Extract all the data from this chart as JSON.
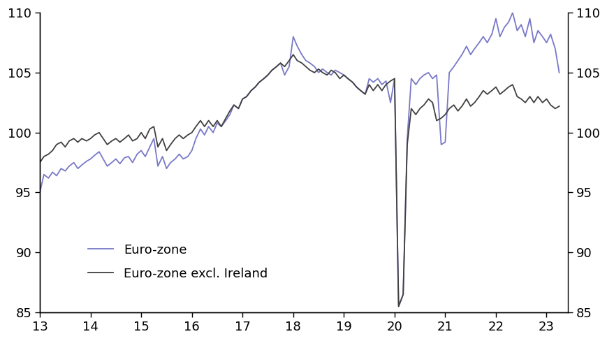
{
  "xlim": [
    13,
    23.42
  ],
  "ylim": [
    85,
    110
  ],
  "xticks": [
    13,
    14,
    15,
    16,
    17,
    18,
    19,
    20,
    21,
    22,
    23
  ],
  "yticks": [
    85,
    90,
    95,
    100,
    105,
    110
  ],
  "legend": [
    {
      "label": "Euro-zone",
      "color": "#7878c8"
    },
    {
      "label": "Euro-zone excl. Ireland",
      "color": "#333333"
    }
  ],
  "eurozone_x": [
    13.0,
    13.08,
    13.17,
    13.25,
    13.33,
    13.42,
    13.5,
    13.58,
    13.67,
    13.75,
    13.83,
    13.92,
    14.0,
    14.08,
    14.17,
    14.25,
    14.33,
    14.42,
    14.5,
    14.58,
    14.67,
    14.75,
    14.83,
    14.92,
    15.0,
    15.08,
    15.17,
    15.25,
    15.33,
    15.42,
    15.5,
    15.58,
    15.67,
    15.75,
    15.83,
    15.92,
    16.0,
    16.08,
    16.17,
    16.25,
    16.33,
    16.42,
    16.5,
    16.58,
    16.67,
    16.75,
    16.83,
    16.92,
    17.0,
    17.08,
    17.17,
    17.25,
    17.33,
    17.42,
    17.5,
    17.58,
    17.67,
    17.75,
    17.83,
    17.92,
    18.0,
    18.08,
    18.17,
    18.25,
    18.33,
    18.42,
    18.5,
    18.58,
    18.67,
    18.75,
    18.83,
    18.92,
    19.0,
    19.08,
    19.17,
    19.25,
    19.33,
    19.42,
    19.5,
    19.58,
    19.67,
    19.75,
    19.83,
    19.92,
    20.0,
    20.08,
    20.17,
    20.25,
    20.33,
    20.42,
    20.5,
    20.58,
    20.67,
    20.75,
    20.83,
    20.92,
    21.0,
    21.08,
    21.17,
    21.25,
    21.33,
    21.42,
    21.5,
    21.58,
    21.67,
    21.75,
    21.83,
    21.92,
    22.0,
    22.08,
    22.17,
    22.25,
    22.33,
    22.42,
    22.5,
    22.58,
    22.67,
    22.75,
    22.83,
    22.92,
    23.0,
    23.08,
    23.17,
    23.25
  ],
  "eurozone_y": [
    95.0,
    96.5,
    96.2,
    96.7,
    96.4,
    97.0,
    96.8,
    97.2,
    97.5,
    97.0,
    97.3,
    97.6,
    97.8,
    98.1,
    98.4,
    97.8,
    97.2,
    97.5,
    97.8,
    97.4,
    97.9,
    98.0,
    97.5,
    98.2,
    98.5,
    98.0,
    98.8,
    99.5,
    97.2,
    98.0,
    97.0,
    97.5,
    97.8,
    98.2,
    97.8,
    98.0,
    98.5,
    99.5,
    100.3,
    99.8,
    100.5,
    100.0,
    100.8,
    100.5,
    101.0,
    101.5,
    102.3,
    102.0,
    102.8,
    103.0,
    103.5,
    103.8,
    104.2,
    104.5,
    104.8,
    105.2,
    105.5,
    105.8,
    104.8,
    105.5,
    108.0,
    107.2,
    106.5,
    106.0,
    105.8,
    105.5,
    105.0,
    105.3,
    105.0,
    104.8,
    105.2,
    105.0,
    104.8,
    104.5,
    104.2,
    103.8,
    103.5,
    103.2,
    104.5,
    104.2,
    104.5,
    104.0,
    104.3,
    102.5,
    104.5,
    85.5,
    86.5,
    99.5,
    104.5,
    104.0,
    104.5,
    104.8,
    105.0,
    104.5,
    104.8,
    99.0,
    99.2,
    105.0,
    105.5,
    106.0,
    106.5,
    107.2,
    106.5,
    107.0,
    107.5,
    108.0,
    107.5,
    108.2,
    109.5,
    108.0,
    108.8,
    109.2,
    110.0,
    108.5,
    109.0,
    108.0,
    109.5,
    107.5,
    108.5,
    108.0,
    107.5,
    108.2,
    107.0,
    105.0
  ],
  "excl_ireland_x": [
    13.0,
    13.08,
    13.17,
    13.25,
    13.33,
    13.42,
    13.5,
    13.58,
    13.67,
    13.75,
    13.83,
    13.92,
    14.0,
    14.08,
    14.17,
    14.25,
    14.33,
    14.42,
    14.5,
    14.58,
    14.67,
    14.75,
    14.83,
    14.92,
    15.0,
    15.08,
    15.17,
    15.25,
    15.33,
    15.42,
    15.5,
    15.58,
    15.67,
    15.75,
    15.83,
    15.92,
    16.0,
    16.08,
    16.17,
    16.25,
    16.33,
    16.42,
    16.5,
    16.58,
    16.67,
    16.75,
    16.83,
    16.92,
    17.0,
    17.08,
    17.17,
    17.25,
    17.33,
    17.42,
    17.5,
    17.58,
    17.67,
    17.75,
    17.83,
    17.92,
    18.0,
    18.08,
    18.17,
    18.25,
    18.33,
    18.42,
    18.5,
    18.58,
    18.67,
    18.75,
    18.83,
    18.92,
    19.0,
    19.08,
    19.17,
    19.25,
    19.33,
    19.42,
    19.5,
    19.58,
    19.67,
    19.75,
    19.83,
    19.92,
    20.0,
    20.08,
    20.17,
    20.25,
    20.33,
    20.42,
    20.5,
    20.58,
    20.67,
    20.75,
    20.83,
    20.92,
    21.0,
    21.08,
    21.17,
    21.25,
    21.33,
    21.42,
    21.5,
    21.58,
    21.67,
    21.75,
    21.83,
    21.92,
    22.0,
    22.08,
    22.17,
    22.25,
    22.33,
    22.42,
    22.5,
    22.58,
    22.67,
    22.75,
    22.83,
    22.92,
    23.0,
    23.08,
    23.17,
    23.25
  ],
  "excl_ireland_y": [
    97.5,
    98.0,
    98.2,
    98.5,
    99.0,
    99.2,
    98.8,
    99.3,
    99.5,
    99.2,
    99.5,
    99.3,
    99.5,
    99.8,
    100.0,
    99.5,
    99.0,
    99.3,
    99.5,
    99.2,
    99.5,
    99.8,
    99.3,
    99.5,
    100.0,
    99.5,
    100.3,
    100.5,
    98.8,
    99.5,
    98.5,
    99.0,
    99.5,
    99.8,
    99.5,
    99.8,
    100.0,
    100.5,
    101.0,
    100.5,
    101.0,
    100.5,
    101.0,
    100.5,
    101.2,
    101.8,
    102.3,
    102.0,
    102.8,
    103.0,
    103.5,
    103.8,
    104.2,
    104.5,
    104.8,
    105.2,
    105.5,
    105.8,
    105.5,
    106.0,
    106.5,
    106.0,
    105.8,
    105.5,
    105.2,
    105.0,
    105.3,
    105.0,
    104.8,
    105.2,
    105.0,
    104.5,
    104.8,
    104.5,
    104.2,
    103.8,
    103.5,
    103.2,
    104.0,
    103.5,
    104.0,
    103.5,
    104.0,
    104.3,
    104.5,
    85.5,
    86.5,
    99.0,
    102.0,
    101.5,
    102.0,
    102.3,
    102.8,
    102.5,
    101.0,
    101.2,
    101.5,
    102.0,
    102.3,
    101.8,
    102.2,
    102.8,
    102.2,
    102.5,
    103.0,
    103.5,
    103.2,
    103.5,
    103.8,
    103.2,
    103.5,
    103.8,
    104.0,
    103.0,
    102.8,
    102.5,
    103.0,
    102.5,
    103.0,
    102.5,
    102.8,
    102.3,
    102.0,
    102.2
  ],
  "eurozone_color": "#7878c8",
  "excl_ireland_color": "#404040",
  "linewidth": 1.3,
  "bg_color": "#ffffff"
}
